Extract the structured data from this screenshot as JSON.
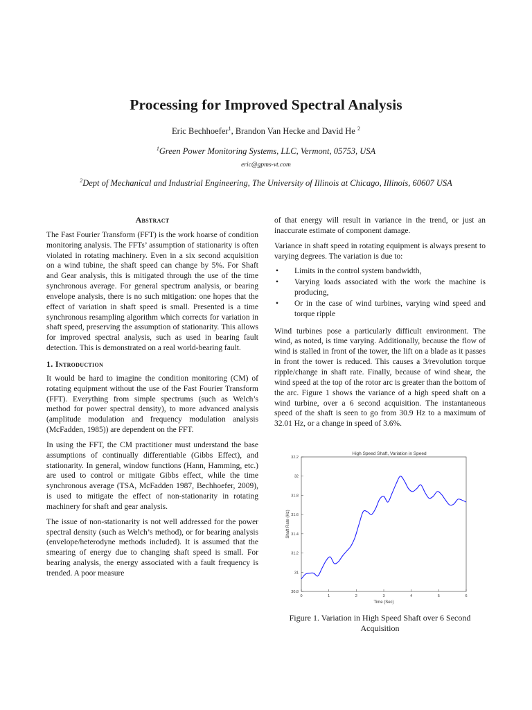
{
  "title": "Processing for Improved Spectral Analysis",
  "authors": {
    "a1": "Eric Bechhoefer",
    "a1_sup": "1",
    "sep": ", Brandon Van Hecke and David He ",
    "a2_sup": "2"
  },
  "affiliations": {
    "aff1_sup": "1",
    "aff1": "Green Power Monitoring Systems, LLC, Vermont, 05753, USA",
    "email": "eric@gpms-vt.com",
    "aff2_sup": "2",
    "aff2": "Dept of Mechanical and Industrial Engineering, The University of Illinois at Chicago, Illinois, 60607 USA"
  },
  "abstract": {
    "heading": "Abstract",
    "text": "The Fast Fourier Transform (FFT) is the work hoarse of condition monitoring analysis. The FFTs’ assumption of stationarity is often violated in rotating machinery. Even in a six second acquisition on a wind tubine, the shaft speed can change by 5%. For Shaft and Gear analysis, this is mitigated through the use of the time synchronous average. For general spectrum analysis, or bearing envelope analysis, there is no such mitigation: one hopes that the effect of variation in shaft speed is small.  Presented is a time synchronous resampling algorithm which corrects for variation in shaft speed, preserving the assumption of stationarity. This allows for improved spectral analysis, such as used in bearing fault detection. This is demonstrated on a real world-bearing fault."
  },
  "introduction": {
    "heading": "1. Introduction",
    "paragraphs": [
      "It would be hard to imagine the condition monitoring (CM) of rotating equipment without the use of the Fast Fourier Transform (FFT). Everything from simple spectrums (such as Welch’s method for power spectral density), to more advanced analysis (amplitude modulation and frequency modulation analysis (McFadden, 1985)) are dependent on the FFT.",
      "In using the FFT, the CM practitioner must understand the base assumptions of continually differentiable (Gibbs Effect), and stationarity. In general, window functions (Hann, Hamming, etc.) are used to control or mitigate Gibbs effect, while the time synchronous average (TSA, McFadden 1987, Bechhoefer, 2009), is used to mitigate the effect of non-stationarity in rotating machinery for shaft and gear analysis.",
      "The issue of non-stationarity is not well addressed for the power spectral density (such as Welch’s method), or for bearing analysis (envelope/heterodyne methods included). It is assumed that the smearing of energy due to changing shaft speed is small. For bearing analysis, the energy associated with a fault frequency is trended. A poor measure"
    ]
  },
  "right_column": {
    "p1": "of that energy will result in variance in the trend, or just an inaccurate estimate of component damage.",
    "p2": "Variance in shaft speed in rotating equipment is always present to varying degrees. The variation is due to:",
    "bullet_glyph": "•",
    "bullets": [
      "Limits in the control system bandwidth,",
      "Varying loads associated with the work the machine is producing,",
      "Or in the case of wind turbines, varying wind speed and torque ripple"
    ],
    "p3": "Wind turbines pose a particularly difficult environment. The wind, as noted, is time varying. Additionally, because the flow of wind is stalled in front of the tower, the lift on a blade as it passes in front the tower is reduced. This causes a 3/revolution torque ripple/change in shaft rate. Finally, because of wind shear, the wind speed at the top of the rotor arc is greater than the bottom of the arc. Figure 1 shows the variance of a high speed shaft on a wind turbine, over a 6 second acquisition. The instantaneous speed of the shaft is seen to go from 30.9 Hz to a maximum of 32.01 Hz, or a change in speed of 3.6%."
  },
  "figure": {
    "caption": "Figure 1. Variation in High Speed Shaft over 6 Second Acquisition"
  },
  "chart_data": {
    "type": "line",
    "title": "High Speed Shaft, Variation in Speed",
    "xlabel": "Time (Sec)",
    "ylabel": "Shaft Rate (Hz)",
    "xlim": [
      0,
      6
    ],
    "ylim": [
      30.8,
      32.2
    ],
    "xticks": [
      "0",
      "1",
      "2",
      "3",
      "4",
      "5",
      "6"
    ],
    "yticks": [
      "30.8",
      "31",
      "31.2",
      "31.4",
      "31.6",
      "31.8",
      "32",
      "32.2"
    ],
    "grid": false,
    "line_color": "#1f1fff",
    "series": [
      {
        "x": [
          0,
          0.15,
          0.3,
          0.45,
          0.6,
          0.75,
          0.9,
          1.05,
          1.2,
          1.35,
          1.5,
          1.65,
          1.8,
          1.95,
          2.1,
          2.25,
          2.4,
          2.55,
          2.7,
          2.85,
          3.0,
          3.15,
          3.3,
          3.45,
          3.6,
          3.75,
          3.9,
          4.05,
          4.2,
          4.35,
          4.5,
          4.65,
          4.8,
          4.95,
          5.1,
          5.25,
          5.4,
          5.55,
          5.7,
          5.85,
          6.0
        ],
        "y": [
          30.93,
          30.98,
          30.99,
          30.99,
          30.96,
          31.04,
          31.12,
          31.16,
          31.09,
          31.11,
          31.17,
          31.22,
          31.27,
          31.36,
          31.5,
          31.63,
          31.63,
          31.6,
          31.66,
          31.76,
          31.79,
          31.73,
          31.82,
          31.92,
          32.0,
          31.95,
          31.87,
          31.84,
          31.87,
          31.91,
          31.83,
          31.77,
          31.79,
          31.84,
          31.81,
          31.75,
          31.7,
          31.71,
          31.76,
          31.75,
          31.73
        ]
      }
    ]
  }
}
